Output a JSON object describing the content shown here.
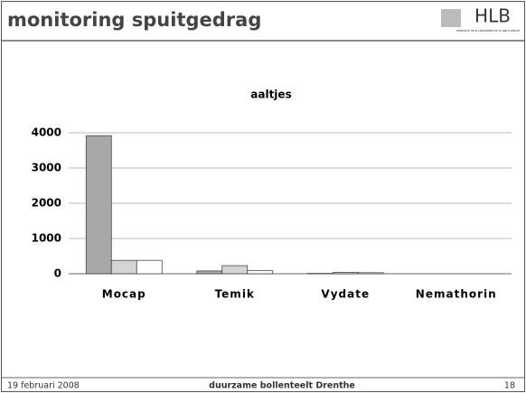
{
  "header": {
    "title": "monitoring spuitgedrag",
    "logo": "HLB",
    "logo_sub": "research and competence in agriculture"
  },
  "footer": {
    "date": "19 februari 2008",
    "center": "duurzame bollenteelt Drenthe",
    "page": "18"
  },
  "chart_data": {
    "type": "bar",
    "title": "aaltjes",
    "categories": [
      "Mocap",
      "Temik",
      "Vydate",
      "Nemathorin"
    ],
    "series": [
      {
        "color": "#a8a8a8",
        "values": [
          3920,
          80,
          10,
          0
        ]
      },
      {
        "color": "#d4d4d4",
        "values": [
          380,
          230,
          40,
          0
        ]
      },
      {
        "color": "#ffffff",
        "values": [
          380,
          90,
          30,
          0
        ]
      }
    ],
    "ylim": [
      0,
      4000
    ],
    "yticks": [
      0,
      1000,
      2000,
      3000,
      4000
    ],
    "grid": true
  }
}
